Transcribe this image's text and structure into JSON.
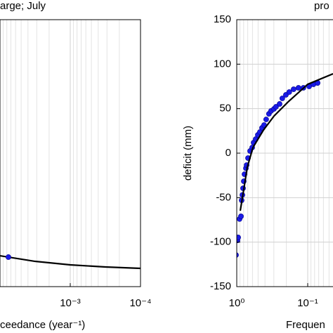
{
  "chart_data": [
    {
      "type": "line",
      "title": "arge; July",
      "xlabel": "ceedance (year⁻¹)",
      "xscale": "log",
      "grid": true,
      "xlim": [
        0.01,
        0.0001
      ],
      "ylim": [
        -150,
        150
      ],
      "xticks": [
        {
          "value": 0.001,
          "label": "10⁻³"
        },
        {
          "value": 0.0001,
          "label": "10⁻⁴"
        }
      ],
      "series": [
        {
          "style": "line",
          "color": "#000000",
          "x": [
            0.01,
            0.00316,
            0.001,
            0.000316,
            0.0001
          ],
          "values": [
            -115.3,
            -121.6,
            -125.5,
            -127.9,
            -129.5
          ]
        },
        {
          "style": "markers",
          "color": "#1a1ae6",
          "x": [
            0.00759
          ],
          "values": [
            -116.8
          ]
        }
      ]
    },
    {
      "type": "line",
      "title": "pro",
      "xlabel": "Frequen",
      "ylabel": "deficit (mm)",
      "xscale": "log",
      "grid": true,
      "xlim": [
        1,
        0.01
      ],
      "ylim": [
        -150,
        150
      ],
      "xticks": [
        {
          "value": 1,
          "label": "10⁰"
        },
        {
          "value": 0.1,
          "label": "10⁻¹"
        }
      ],
      "yticks": [
        -150,
        -100,
        -50,
        0,
        50,
        100,
        150
      ],
      "series": [
        {
          "style": "markers",
          "color": "#1a1ae6",
          "x": [
            1.023,
            0.977,
            0.955,
            0.913,
            0.872,
            0.853,
            0.833,
            0.815,
            0.796,
            0.778,
            0.743,
            0.726,
            0.694,
            0.649,
            0.606,
            0.579,
            0.541,
            0.505,
            0.472,
            0.441,
            0.412,
            0.385,
            0.352,
            0.329,
            0.299,
            0.28,
            0.249,
            0.228,
            0.203,
            0.182,
            0.158,
            0.135,
            0.115,
            0.0955,
            0.083,
            0.0725
          ],
          "values": [
            -114.5,
            -98,
            -94.7,
            -74,
            -71,
            -53,
            -47,
            -39.5,
            -31.6,
            -23.7,
            -17,
            -13.4,
            -5.5,
            2.4,
            6.3,
            11.8,
            15.8,
            20.5,
            23.7,
            28.4,
            31.6,
            37.9,
            44.2,
            47.4,
            49.7,
            52.1,
            55.3,
            61.6,
            65.5,
            68.7,
            71.8,
            73.4,
            73.4,
            75,
            77.4,
            78.9
          ]
        },
        {
          "style": "line",
          "color": "#000000",
          "x": [
            0.892,
            0.833,
            0.71,
            0.592,
            0.42,
            0.298,
            0.189,
            0.1,
            0.044
          ],
          "values": [
            -64.7,
            -50.5,
            -15.8,
            6.3,
            26,
            41.8,
            57.6,
            77.4,
            89.2
          ]
        }
      ]
    }
  ]
}
